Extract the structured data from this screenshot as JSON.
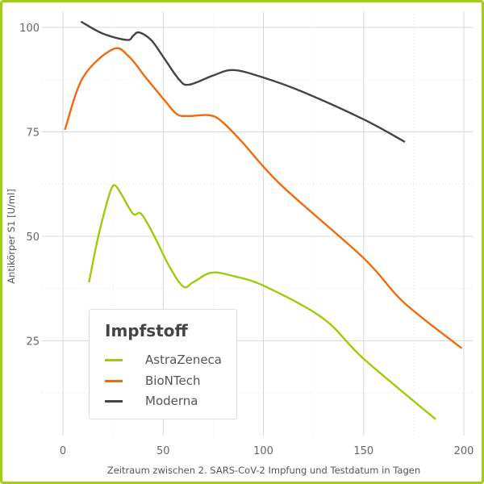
{
  "chart_data": {
    "type": "line",
    "title": "",
    "xlabel": "Zeitraum zwischen 2. SARS-CoV-2 Impfung und Testdatum in Tagen",
    "ylabel": "Antikörper S1 [U/ml]",
    "xlim": [
      -10,
      204
    ],
    "ylim": [
      -2,
      104
    ],
    "xticks": [
      "0",
      "50",
      "100",
      "150",
      "200"
    ],
    "yticks": [
      "25",
      "50",
      "75",
      "100"
    ],
    "grid": true,
    "legend": {
      "title": "Impfstoff",
      "placement": "bottom-left"
    },
    "series": [
      {
        "name": "AstraZeneca",
        "color": "#9ccc0a",
        "x": [
          13,
          17,
          21,
          24,
          26,
          29,
          35,
          39,
          45,
          53,
          60,
          65,
          74,
          85,
          101,
          130,
          150,
          186
        ],
        "y": [
          39,
          48.6,
          56.4,
          61.2,
          62.2,
          60.2,
          55.4,
          55.4,
          50.6,
          42.9,
          38,
          39,
          41.3,
          40.5,
          38,
          30.3,
          20.7,
          6.2
        ]
      },
      {
        "name": "BioNTech",
        "color": "#f06a0c",
        "x": [
          1,
          10,
          25,
          33,
          41,
          51,
          57,
          63,
          73,
          79,
          89,
          109,
          150,
          170,
          199
        ],
        "y": [
          75.5,
          88,
          94.8,
          93,
          88.2,
          82.4,
          79.2,
          78.8,
          79,
          77.6,
          72.8,
          62.2,
          44.8,
          34.2,
          23.2
        ]
      },
      {
        "name": "Moderna",
        "color": "#444444",
        "x": [
          9,
          20,
          32,
          35,
          38,
          44,
          50,
          58,
          63,
          75,
          85,
          100,
          120,
          150,
          170.6
        ],
        "y": [
          101.4,
          98.5,
          97,
          98,
          98.8,
          97,
          93,
          87.5,
          86.3,
          88.5,
          89.8,
          88,
          84.5,
          78,
          72.6
        ]
      }
    ]
  }
}
